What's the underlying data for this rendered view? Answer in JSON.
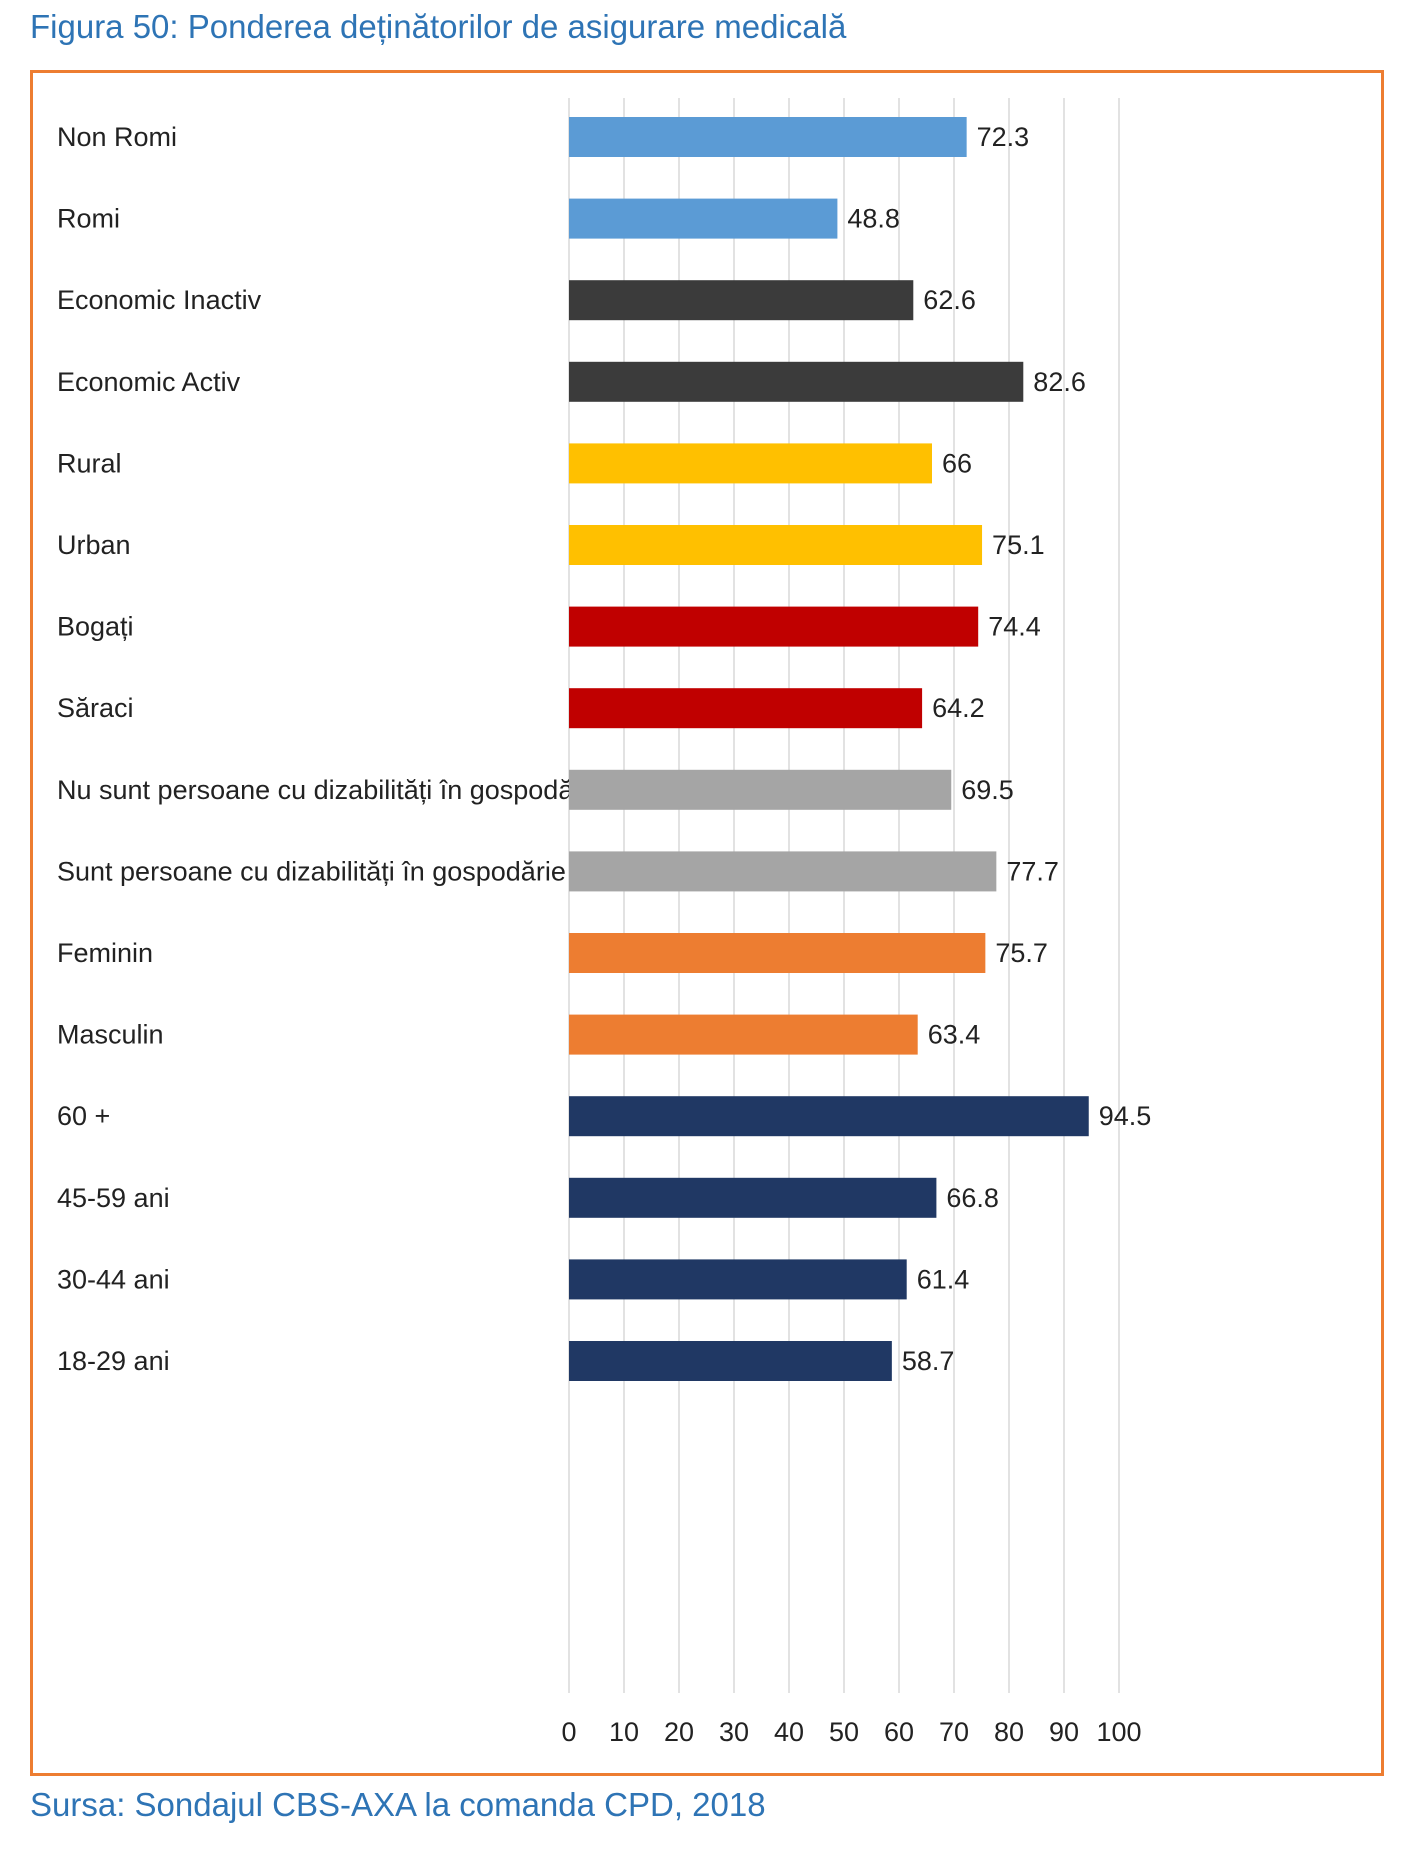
{
  "figure_title": "Figura 50: Ponderea deținătorilor de asigurare medicală",
  "source_note": "Sursa: Sondajul CBS-AXA la comanda CPD, 2018",
  "chart_data": {
    "type": "bar",
    "orientation": "horizontal",
    "title": "",
    "xlabel": "",
    "ylabel": "",
    "xlim": [
      0,
      100
    ],
    "x_ticks": [
      0,
      10,
      20,
      30,
      40,
      50,
      60,
      70,
      80,
      90,
      100
    ],
    "grid": true,
    "categories": [
      "Non Romi",
      "Romi",
      "Economic Inactiv",
      "Economic Activ",
      "Rural",
      "Urban",
      "Bogați",
      "Săraci",
      "Nu sunt persoane cu dizabilități în gospodărie",
      "Sunt persoane cu dizabilități în gospodărie",
      "Feminin",
      "Masculin",
      "60 +",
      "45-59 ani",
      "30-44 ani",
      "18-29 ani"
    ],
    "values": [
      72.3,
      48.8,
      62.6,
      82.6,
      66,
      75.1,
      74.4,
      64.2,
      69.5,
      77.7,
      75.7,
      63.4,
      94.5,
      66.8,
      61.4,
      58.7
    ],
    "value_labels": [
      "72.3",
      "48.8",
      "62.6",
      "82.6",
      "66",
      "75.1",
      "74.4",
      "64.2",
      "69.5",
      "77.7",
      "75.7",
      "63.4",
      "94.5",
      "66.8",
      "61.4",
      "58.7"
    ],
    "colors": [
      "#5b9bd5",
      "#5b9bd5",
      "#3b3b3b",
      "#3b3b3b",
      "#ffc000",
      "#ffc000",
      "#c00000",
      "#c00000",
      "#a5a5a5",
      "#a5a5a5",
      "#ed7d31",
      "#ed7d31",
      "#203864",
      "#203864",
      "#203864",
      "#203864"
    ],
    "frame_color": "#ed7d31",
    "text_color": "#222222",
    "gridline_color": "#d9d9d9"
  }
}
